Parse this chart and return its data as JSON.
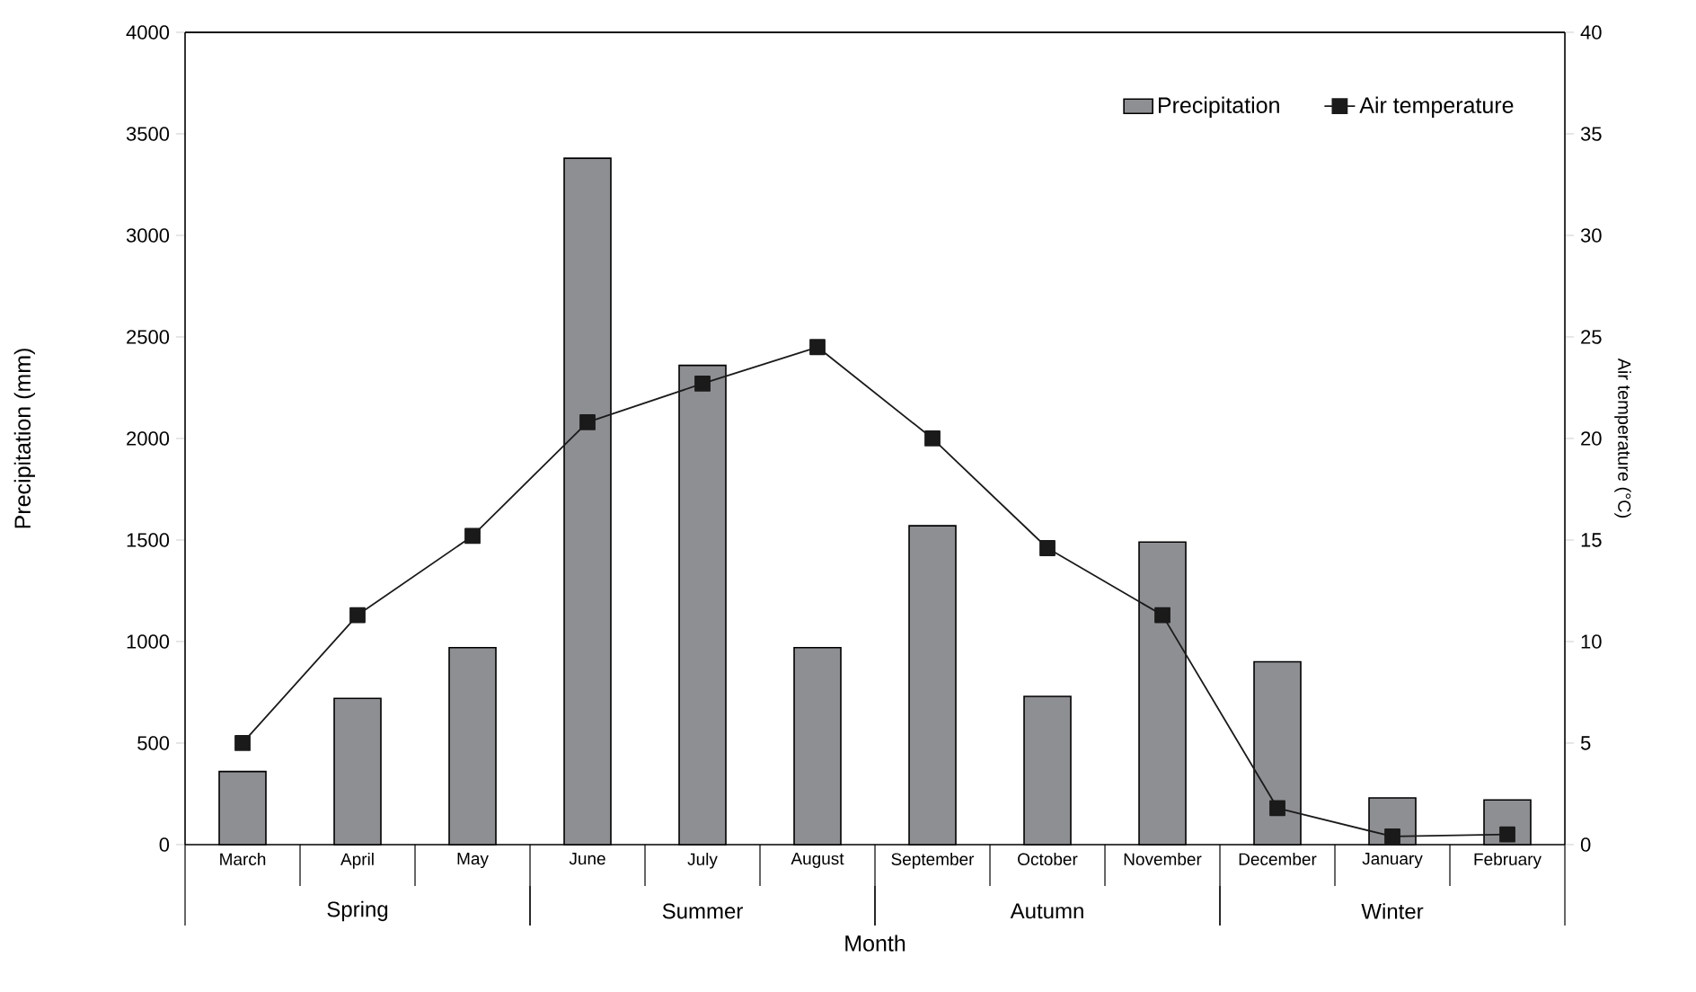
{
  "chart_data": {
    "type": "bar",
    "xlabel": "Month",
    "ylabel": "Precipitation (mm)",
    "y2label": "Air temperature (°C)",
    "categories": [
      "March",
      "April",
      "May",
      "June",
      "July",
      "August",
      "September",
      "October",
      "November",
      "December",
      "January",
      "February"
    ],
    "series": [
      {
        "name": "Precipitation",
        "color": "#8e8f93",
        "values": [
          360,
          720,
          970,
          3380,
          2360,
          970,
          1570,
          730,
          1490,
          900,
          230,
          220
        ]
      },
      {
        "name": "Air temperature",
        "type": "line",
        "axis": "y2",
        "color": "#1a1a1a",
        "marker": "square",
        "line_style": "solid",
        "values": [
          5.0,
          11.3,
          15.2,
          20.8,
          22.7,
          24.5,
          20.0,
          14.6,
          11.3,
          1.8,
          0.4,
          0.5
        ]
      }
    ],
    "ylim": [
      0,
      4000
    ],
    "yticks": [
      0,
      500,
      1000,
      1500,
      2000,
      2500,
      3000,
      3500,
      4000
    ],
    "y2lim": [
      0,
      40
    ],
    "y2ticks": [
      0,
      5,
      10,
      15,
      20,
      25,
      30,
      35,
      40
    ],
    "legend": "top right",
    "annotations": [
      "Spring",
      "Summer",
      "Autumn",
      "Winter"
    ]
  }
}
